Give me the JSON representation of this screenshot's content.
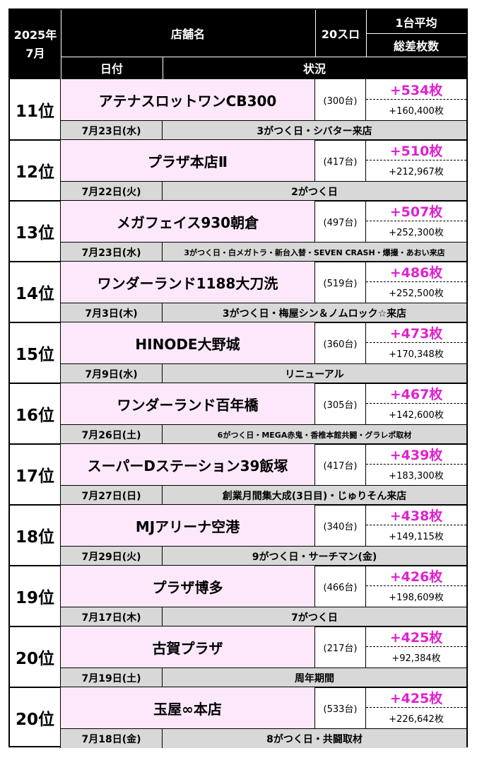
{
  "header": {
    "period_year": "2025年",
    "period_month": "7月",
    "shop_col": "店舗名",
    "machine_col": "20スロ",
    "avg_col": "1台平均",
    "total_col": "総差枚数",
    "date_col": "日付",
    "status_col": "状況"
  },
  "rows": [
    {
      "rank": "11位",
      "shop": "アテナスロットワンCB300",
      "units": "(300台)",
      "avg": "+534枚",
      "total": "+160,400枚",
      "date": "7月23日(水)",
      "status": "3がつく日・シバター来店"
    },
    {
      "rank": "12位",
      "shop": "プラザ本店Ⅱ",
      "units": "(417台)",
      "avg": "+510枚",
      "total": "+212,967枚",
      "date": "7月22日(火)",
      "status": "2がつく日"
    },
    {
      "rank": "13位",
      "shop": "メガフェイス930朝倉",
      "units": "(497台)",
      "avg": "+507枚",
      "total": "+252,300枚",
      "date": "7月23日(水)",
      "status": "3がつく日・白メガトラ・新台入替・SEVEN CRASH・爆撮・あおい来店"
    },
    {
      "rank": "14位",
      "shop": "ワンダーランド1188大刀洗",
      "units": "(519台)",
      "avg": "+486枚",
      "total": "+252,500枚",
      "date": "7月3日(木)",
      "status": "3がつく日・梅屋シン＆ノムロック☆来店"
    },
    {
      "rank": "15位",
      "shop": "HINODE大野城",
      "units": "(360台)",
      "avg": "+473枚",
      "total": "+170,348枚",
      "date": "7月9日(水)",
      "status": "リニューアル"
    },
    {
      "rank": "16位",
      "shop": "ワンダーランド百年橋",
      "units": "(305台)",
      "avg": "+467枚",
      "total": "+142,600枚",
      "date": "7月26日(土)",
      "status": "6がつく日・MEGA赤鬼・香椎本館共闘・グラレポ取材"
    },
    {
      "rank": "17位",
      "shop": "スーパーDステーション39飯塚",
      "units": "(417台)",
      "avg": "+439枚",
      "total": "+183,300枚",
      "date": "7月27日(日)",
      "status": "創業月間集大成(3日目)・じゅりそん来店"
    },
    {
      "rank": "18位",
      "shop": "MJアリーナ空港",
      "units": "(340台)",
      "avg": "+438枚",
      "total": "+149,115枚",
      "date": "7月29日(火)",
      "status": "9がつく日・サーチマン(金)"
    },
    {
      "rank": "19位",
      "shop": "プラザ博多",
      "units": "(466台)",
      "avg": "+426枚",
      "total": "+198,609枚",
      "date": "7月17日(木)",
      "status": "7がつく日"
    },
    {
      "rank": "20位",
      "shop": "古賀プラザ",
      "units": "(217台)",
      "avg": "+425枚",
      "total": "+92,384枚",
      "date": "7月19日(土)",
      "status": "周年期間"
    },
    {
      "rank": "20位",
      "shop": "玉屋∞本店",
      "units": "(533台)",
      "avg": "+425枚",
      "total": "+226,642枚",
      "date": "7月18日(金)",
      "status": "8がつく日・共闘取材"
    }
  ],
  "colors": {
    "header_bg": "#000000",
    "shop_bg": "#fde8fb",
    "avg_text": "#e020d0",
    "date_status_bg": "#d8d8d8"
  }
}
